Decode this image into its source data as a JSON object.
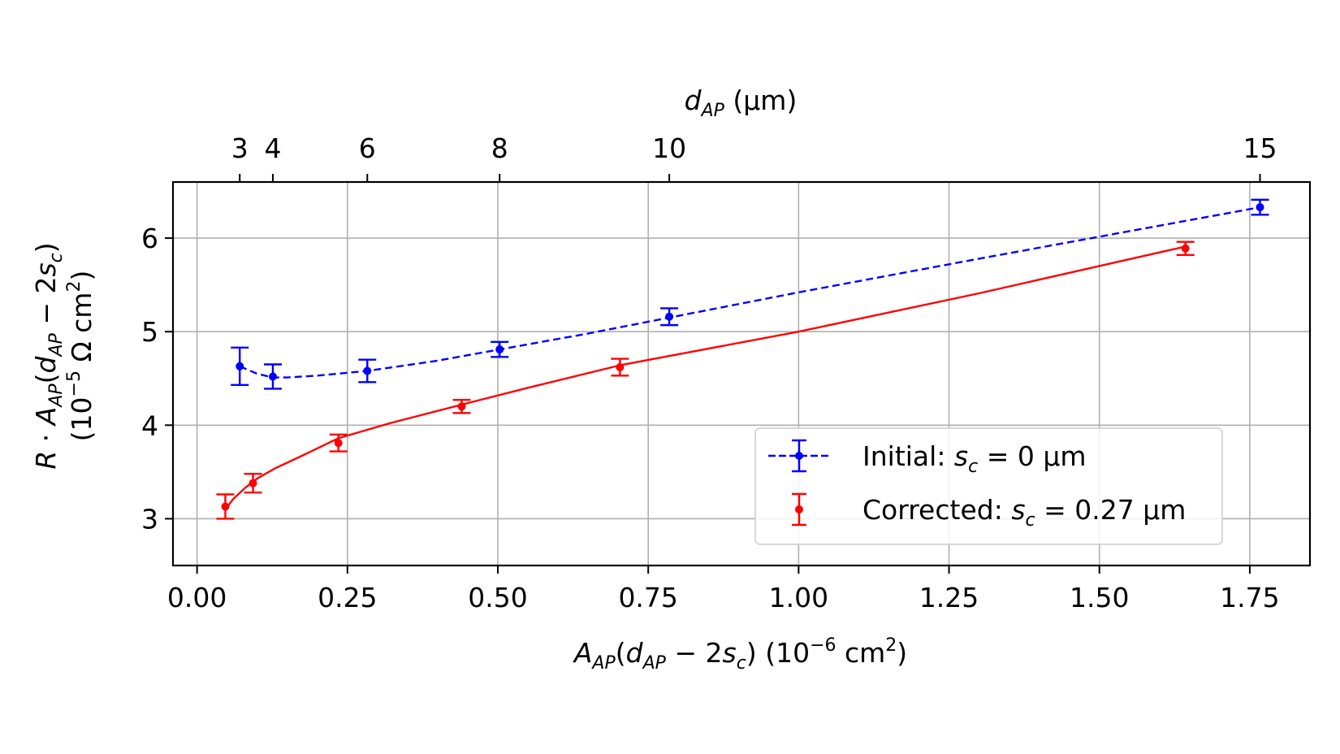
{
  "chart_data": {
    "type": "scatter",
    "xlabel": {
      "a": "A",
      "a_sub": "AP",
      "open": "(",
      "d": "d",
      "d_sub": "AP",
      "minus": " − 2",
      "s": "s",
      "s_sub": "c",
      "close": ")",
      "unit_pre": "  (10",
      "unit_exp": "−6",
      "unit_post": " cm",
      "unit_exp2": "2",
      "unit_close": ")"
    },
    "ylabel": {
      "line1": {
        "r": "R",
        "dot": " · ",
        "a": "A",
        "a_sub": "AP",
        "open": "(",
        "d": "d",
        "d_sub": "AP",
        "minus": " − 2",
        "s": "s",
        "s_sub": "c",
        "close": ")"
      },
      "line2": {
        "pre": "(10",
        "exp": "−5",
        "mid": " Ω cm",
        "exp2": "2",
        "close": ")"
      }
    },
    "top_label": {
      "d": "d",
      "d_sub": "AP",
      "unit": " (µm)"
    },
    "xlim": [
      -0.04,
      1.85
    ],
    "ylim": [
      2.5,
      6.6
    ],
    "xticks": [
      0.0,
      0.25,
      0.5,
      0.75,
      1.0,
      1.25,
      1.5,
      1.75
    ],
    "xtick_labels": [
      "0.00",
      "0.25",
      "0.50",
      "0.75",
      "1.00",
      "1.25",
      "1.50",
      "1.75"
    ],
    "yticks": [
      3,
      4,
      5,
      6
    ],
    "ytick_labels": [
      "3",
      "4",
      "5",
      "6"
    ],
    "top_ticks": [
      {
        "label": "3",
        "x": 0.071
      },
      {
        "label": "4",
        "x": 0.126
      },
      {
        "label": "6",
        "x": 0.283
      },
      {
        "label": "8",
        "x": 0.503
      },
      {
        "label": "10",
        "x": 0.785
      },
      {
        "label": "15",
        "x": 1.767
      }
    ],
    "grid": true,
    "legend_position": "lower-right",
    "series": [
      {
        "name_prefix": "Initial: ",
        "name_var": "s",
        "name_sub": "c",
        "name_suffix": " = 0 µm",
        "color": "#0000ff",
        "line": "dashed",
        "x": [
          0.071,
          0.126,
          0.283,
          0.503,
          0.785,
          1.767
        ],
        "y": [
          4.63,
          4.52,
          4.58,
          4.81,
          5.16,
          6.33
        ],
        "err": [
          0.2,
          0.13,
          0.12,
          0.08,
          0.09,
          0.08
        ],
        "fit": {
          "x": [
            0.071,
            0.1,
            0.126,
            0.15,
            0.2,
            0.283,
            0.4,
            0.503,
            0.65,
            0.785,
            1.0,
            1.3,
            1.767
          ],
          "y": [
            4.63,
            4.55,
            4.51,
            4.51,
            4.53,
            4.58,
            4.69,
            4.81,
            4.98,
            5.15,
            5.42,
            5.78,
            6.33
          ]
        }
      },
      {
        "name_prefix": "Corrected: ",
        "name_var": "s",
        "name_sub": "c",
        "name_suffix": " = 0.27 µm",
        "color": "#ff0000",
        "line": "solid",
        "x": [
          0.047,
          0.093,
          0.235,
          0.44,
          0.703,
          1.643
        ],
        "y": [
          3.13,
          3.38,
          3.81,
          4.2,
          4.62,
          5.89
        ],
        "err": [
          0.13,
          0.1,
          0.09,
          0.07,
          0.09,
          0.07
        ],
        "fit": {
          "x": [
            0.047,
            0.06,
            0.08,
            0.1,
            0.13,
            0.17,
            0.235,
            0.32,
            0.44,
            0.55,
            0.703,
            1.0,
            1.3,
            1.643
          ],
          "y": [
            3.1,
            3.21,
            3.33,
            3.43,
            3.54,
            3.66,
            3.86,
            4.02,
            4.22,
            4.4,
            4.64,
            5.0,
            5.41,
            5.91
          ]
        }
      }
    ]
  }
}
